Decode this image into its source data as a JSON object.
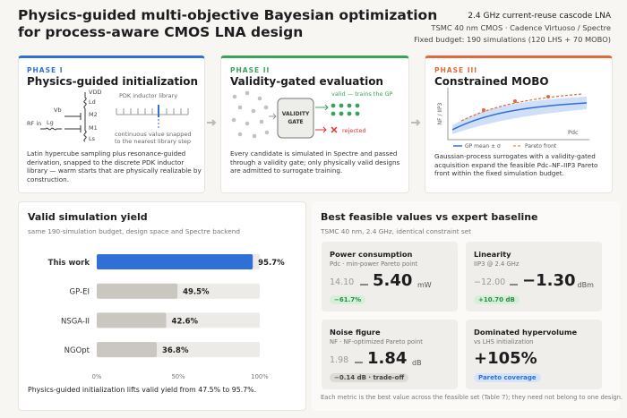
{
  "header": {
    "title_lines": [
      "Physics-guided multi-objective Bayesian optimization",
      "for process-aware CMOS LNA design"
    ],
    "info": [
      "2.4 GHz current-reuse cascode LNA",
      "TSMC 40 nm CMOS · Cadence Virtuoso / Spectre",
      "Fixed budget: 190 simulations (120 LHS + 70 MOBO)"
    ]
  },
  "phases": [
    {
      "phase": "PHASE I",
      "title": "Physics-guided initialization",
      "labels": [
        "VDD",
        "Ld",
        "M2",
        "Vb",
        "RF in",
        "Lg",
        "M1",
        "Ls",
        "PDK inductor library",
        "continuous value snapped",
        "to the nearest library step"
      ],
      "description": "Latin hypercube sampling plus resonance-guided derivation, snapped to the discrete PDK inductor library — warm starts that are physically realizable by construction."
    },
    {
      "phase": "PHASE II",
      "title": "Validity-gated evaluation",
      "labels": [
        "VALIDITY",
        "GATE",
        "valid — trains the GP",
        "rejected"
      ],
      "description": "Every candidate is simulated in Spectre and passed through a validity gate; only physically valid designs are admitted to surrogate training."
    },
    {
      "phase": "PHASE III",
      "title": "Constrained MOBO",
      "labels": [
        "NF / IIP3",
        "Pdc",
        "GP mean ± σ",
        "Pareto front"
      ],
      "description": "Gaussian-process surrogates with a validity-gated acquisition expand the feasible Pdc–NF–IIP3 Pareto front within the fixed simulation budget."
    }
  ],
  "chart_data": {
    "type": "hbar",
    "title": "Valid simulation yield",
    "subtitle": "same 190-simulation budget, design space and Spectre backend",
    "categories": [
      "This work",
      "GP-EI",
      "NSGA-II",
      "NGOpt"
    ],
    "values": [
      95.7,
      49.5,
      42.6,
      36.8
    ],
    "value_labels": [
      "95.7%",
      "49.5%",
      "42.6%",
      "36.8%"
    ],
    "colors": [
      "#2f6fd6",
      "#c9c7c0",
      "#c9c7c0",
      "#c9c7c0"
    ],
    "xlim": [
      0,
      100
    ],
    "xticks": [
      {
        "value": 0,
        "label": "0%"
      },
      {
        "value": 50,
        "label": "50%"
      },
      {
        "value": 100,
        "label": "100%"
      }
    ],
    "note": "Physics-guided initialization lifts valid yield from 47.5% to 95.7%."
  },
  "metrics": {
    "title": "Best feasible values vs expert baseline",
    "subtitle": "TSMC 40 nm, 2.4 GHz, identical constraint set",
    "cards": [
      {
        "title": "Power consumption",
        "subtitle": "Pdc · min-power Pareto point",
        "baseline": "14.10",
        "value": "5.40",
        "unit": "mW",
        "badge": "−61.7%"
      },
      {
        "title": "Linearity",
        "subtitle": "IIP3 @ 2.4 GHz",
        "baseline": "−12.00",
        "value": "−1.30",
        "unit": "dBm",
        "badge": "+10.70 dB"
      },
      {
        "title": "Noise figure",
        "subtitle": "NF · NF-optimized Pareto point",
        "baseline": "1.98",
        "value": "1.84",
        "unit": "dB",
        "badge": "−0.14 dB · trade-off"
      },
      {
        "title": "Dominated hypervolume",
        "subtitle": "vs LHS initialization",
        "value": "+105%",
        "badge": "Pareto coverage"
      }
    ],
    "footnote": "Each metric is the best value across the feasible set (Table 7); they need not belong to one design."
  }
}
